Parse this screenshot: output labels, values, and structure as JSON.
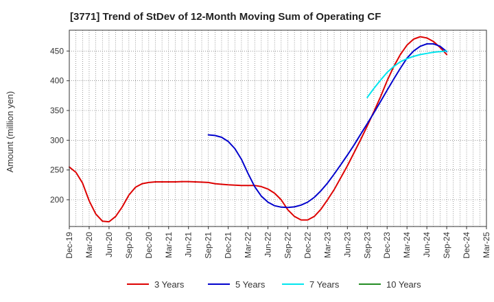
{
  "chart_data": {
    "type": "line",
    "title": "[3771]  Trend of StDev of 12-Month Moving Sum of Operating CF",
    "ylabel": "Amount (million yen)",
    "xlabel": "",
    "ylim": [
      155,
      485
    ],
    "yticks": [
      200,
      250,
      300,
      350,
      400,
      450
    ],
    "x_start": "Dec-19",
    "x_end": "Mar-25",
    "xticks": [
      "Dec-19",
      "Mar-20",
      "Jun-20",
      "Sep-20",
      "Dec-20",
      "Mar-21",
      "Jun-21",
      "Sep-21",
      "Dec-21",
      "Mar-22",
      "Jun-22",
      "Sep-22",
      "Dec-22",
      "Mar-23",
      "Jun-23",
      "Sep-23",
      "Dec-23",
      "Mar-24",
      "Jun-24",
      "Sep-24",
      "Dec-24",
      "Mar-25"
    ],
    "grid": true,
    "legend_position": "bottom",
    "series": [
      {
        "name": "3 Years",
        "color": "#dd0000",
        "points": [
          [
            "Dec-19",
            255
          ],
          [
            "Jan-20",
            246
          ],
          [
            "Feb-20",
            228
          ],
          [
            "Mar-20",
            198
          ],
          [
            "Apr-20",
            176
          ],
          [
            "May-20",
            164
          ],
          [
            "Jun-20",
            163
          ],
          [
            "Jul-20",
            172
          ],
          [
            "Aug-20",
            188
          ],
          [
            "Sep-20",
            208
          ],
          [
            "Oct-20",
            221
          ],
          [
            "Nov-20",
            227
          ],
          [
            "Dec-20",
            229
          ],
          [
            "Jan-21",
            230
          ],
          [
            "Feb-21",
            230
          ],
          [
            "Mar-21",
            230
          ],
          [
            "Apr-21",
            230
          ],
          [
            "May-21",
            230.5
          ],
          [
            "Jun-21",
            230.5
          ],
          [
            "Jul-21",
            230
          ],
          [
            "Aug-21",
            229.5
          ],
          [
            "Sep-21",
            229
          ],
          [
            "Oct-21",
            227
          ],
          [
            "Nov-21",
            226
          ],
          [
            "Dec-21",
            225
          ],
          [
            "Jan-22",
            224.5
          ],
          [
            "Feb-22",
            224
          ],
          [
            "Mar-22",
            224
          ],
          [
            "Apr-22",
            224
          ],
          [
            "May-22",
            222
          ],
          [
            "Jun-22",
            218
          ],
          [
            "Jul-22",
            211
          ],
          [
            "Aug-22",
            200
          ],
          [
            "Sep-22",
            183
          ],
          [
            "Oct-22",
            172
          ],
          [
            "Nov-22",
            166
          ],
          [
            "Dec-22",
            166
          ],
          [
            "Jan-23",
            172
          ],
          [
            "Feb-23",
            184
          ],
          [
            "Mar-23",
            200
          ],
          [
            "Apr-23",
            217
          ],
          [
            "May-23",
            237
          ],
          [
            "Jun-23",
            257
          ],
          [
            "Jul-23",
            279
          ],
          [
            "Aug-23",
            301
          ],
          [
            "Sep-23",
            324
          ],
          [
            "Oct-23",
            348
          ],
          [
            "Nov-23",
            373
          ],
          [
            "Dec-23",
            400
          ],
          [
            "Jan-24",
            424
          ],
          [
            "Feb-24",
            444
          ],
          [
            "Mar-24",
            460
          ],
          [
            "Apr-24",
            470
          ],
          [
            "May-24",
            474
          ],
          [
            "Jun-24",
            472
          ],
          [
            "Jul-24",
            466
          ],
          [
            "Aug-24",
            456
          ],
          [
            "Sep-24",
            444
          ]
        ]
      },
      {
        "name": "5 Years",
        "color": "#0000cc",
        "points": [
          [
            "Sep-21",
            309
          ],
          [
            "Oct-21",
            308
          ],
          [
            "Nov-21",
            305
          ],
          [
            "Dec-21",
            298
          ],
          [
            "Jan-22",
            286
          ],
          [
            "Feb-22",
            268
          ],
          [
            "Mar-22",
            244
          ],
          [
            "Apr-22",
            222
          ],
          [
            "May-22",
            206
          ],
          [
            "Jun-22",
            196
          ],
          [
            "Jul-22",
            190
          ],
          [
            "Aug-22",
            187.5
          ],
          [
            "Sep-22",
            187
          ],
          [
            "Oct-22",
            188
          ],
          [
            "Nov-22",
            191
          ],
          [
            "Dec-22",
            196
          ],
          [
            "Jan-23",
            204
          ],
          [
            "Feb-23",
            215
          ],
          [
            "Mar-23",
            228
          ],
          [
            "Apr-23",
            243
          ],
          [
            "May-23",
            259
          ],
          [
            "Jun-23",
            275
          ],
          [
            "Jul-23",
            292
          ],
          [
            "Aug-23",
            310
          ],
          [
            "Sep-23",
            328
          ],
          [
            "Oct-23",
            346
          ],
          [
            "Nov-23",
            365
          ],
          [
            "Dec-23",
            384
          ],
          [
            "Jan-24",
            403
          ],
          [
            "Feb-24",
            421
          ],
          [
            "Mar-24",
            438
          ],
          [
            "Apr-24",
            450
          ],
          [
            "May-24",
            458
          ],
          [
            "Jun-24",
            462
          ],
          [
            "Jul-24",
            462
          ],
          [
            "Aug-24",
            458
          ],
          [
            "Sep-24",
            449
          ]
        ]
      },
      {
        "name": "7 Years",
        "color": "#00e5ee",
        "points": [
          [
            "Sep-23",
            372
          ],
          [
            "Oct-23",
            387
          ],
          [
            "Nov-23",
            401
          ],
          [
            "Dec-23",
            414
          ],
          [
            "Jan-24",
            424
          ],
          [
            "Feb-24",
            432
          ],
          [
            "Mar-24",
            437
          ],
          [
            "Apr-24",
            441
          ],
          [
            "May-24",
            444
          ],
          [
            "Jun-24",
            446
          ],
          [
            "Jul-24",
            448
          ],
          [
            "Aug-24",
            449
          ],
          [
            "Sep-24",
            450
          ]
        ]
      },
      {
        "name": "10 Years",
        "color": "#228b22",
        "points": []
      }
    ]
  }
}
